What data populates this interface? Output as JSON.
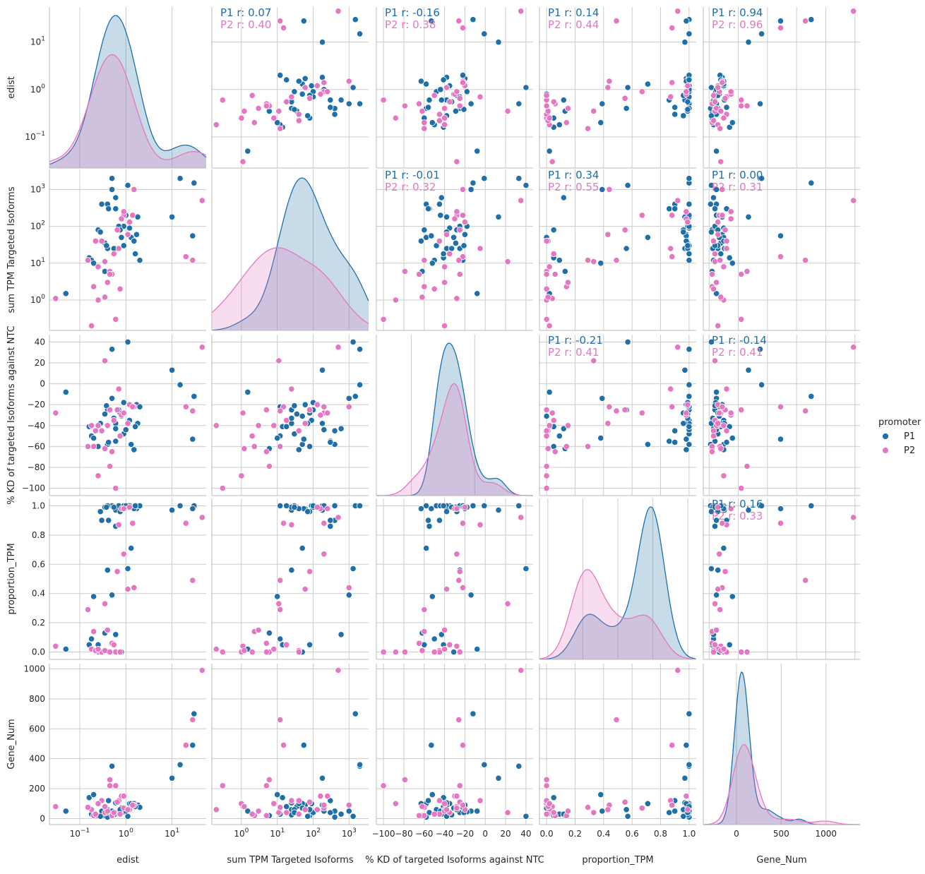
{
  "chart_data": {
    "type": "scatter",
    "kind": "pairplot",
    "variables": [
      {
        "name": "edist",
        "scale": "log",
        "range": [
          0.022,
          55
        ],
        "ticks": [
          {
            "v": 0.1,
            "b": "10",
            "e": "−1"
          },
          {
            "v": 1,
            "b": "10",
            "e": "0"
          },
          {
            "v": 10,
            "b": "10",
            "e": "1"
          }
        ]
      },
      {
        "name": "sum TPM Targeted Isoforms",
        "scale": "log",
        "range": [
          0.15,
          3500
        ],
        "ticks": [
          {
            "v": 1,
            "b": "10",
            "e": "0"
          },
          {
            "v": 10,
            "b": "10",
            "e": "1"
          },
          {
            "v": 100,
            "b": "10",
            "e": "2"
          },
          {
            "v": 1000,
            "b": "10",
            "e": "3"
          }
        ]
      },
      {
        "name": "% KD of targeted Isoforms against NTC",
        "scale": "linear",
        "range": [
          -107,
          47
        ],
        "ticks": [
          {
            "v": -100,
            "t": "−100"
          },
          {
            "v": -80,
            "t": "−80"
          },
          {
            "v": -60,
            "t": "−60"
          },
          {
            "v": -40,
            "t": "−40"
          },
          {
            "v": -20,
            "t": "−20"
          },
          {
            "v": 0,
            "t": "0"
          },
          {
            "v": 20,
            "t": "20"
          },
          {
            "v": 40,
            "t": "40"
          }
        ]
      },
      {
        "name": "proportion_TPM",
        "scale": "linear",
        "range": [
          -0.05,
          1.05
        ],
        "ticks": [
          {
            "v": 0,
            "t": "0.0"
          },
          {
            "v": 0.2,
            "t": "0.2"
          },
          {
            "v": 0.4,
            "t": "0.4"
          },
          {
            "v": 0.6,
            "t": "0.6"
          },
          {
            "v": 0.8,
            "t": "0.8"
          },
          {
            "v": 1.0,
            "t": "1.0"
          }
        ]
      },
      {
        "name": "Gene_Num",
        "scale": "linear",
        "range": [
          -40,
          1035
        ],
        "ticks": [
          {
            "v": 0,
            "t": "0"
          },
          {
            "v": 200,
            "t": "200"
          },
          {
            "v": 400,
            "t": "400"
          },
          {
            "v": 600,
            "t": "600"
          },
          {
            "v": 800,
            "t": "800"
          },
          {
            "v": 1000,
            "t": "1000"
          }
        ]
      }
    ],
    "diag_x_ranges": [
      [
        0.022,
        55
      ],
      [
        0.15,
        3500
      ],
      [
        -155,
        92
      ],
      [
        -0.62,
        1.62
      ],
      [
        -370,
        1380
      ]
    ],
    "diag_x_ticks": [
      null,
      null,
      [
        {
          "v": -100,
          "t": "−100"
        },
        {
          "v": 0,
          "t": "0"
        }
      ],
      [
        {
          "v": -0.5,
          "t": "−0.5"
        },
        {
          "v": 0,
          "t": "0.0"
        },
        {
          "v": 0.5,
          "t": "0.5"
        },
        {
          "v": 1.0,
          "t": "1.0"
        },
        {
          "v": 1.5,
          "t": "1.5"
        }
      ],
      [
        {
          "v": 0,
          "t": "0"
        },
        {
          "v": 500,
          "t": "500"
        },
        {
          "v": 1000,
          "t": "1000"
        }
      ]
    ],
    "series": [
      {
        "name": "P1",
        "color": "#1f6fa8",
        "points": [
          [
            1.1,
            1300,
            40,
            0.57,
            15
          ],
          [
            0.05,
            1.5,
            -8,
            0.02,
            50
          ],
          [
            0.5,
            2000,
            33,
            1.0,
            350
          ],
          [
            30,
            1500,
            -12,
            1.0,
            700
          ],
          [
            0.3,
            400,
            -45,
            0.9,
            50
          ],
          [
            0.6,
            300,
            -55,
            0.86,
            40
          ],
          [
            1.7,
            60,
            -20,
            0.98,
            90
          ],
          [
            1.2,
            90,
            -35,
            1.0,
            100
          ],
          [
            0.4,
            25,
            -25,
            0.56,
            60
          ],
          [
            0.25,
            80,
            -60,
            0.05,
            20
          ],
          [
            0.16,
            14,
            -41,
            0.05,
            140
          ],
          [
            1.8,
            180,
            -38,
            1.0,
            90
          ],
          [
            0.6,
            25,
            -38,
            0.97,
            105
          ],
          [
            0.35,
            35,
            -29,
            0.99,
            80
          ],
          [
            1.3,
            50,
            -58,
            0.71,
            100
          ],
          [
            0.5,
            1000,
            -14,
            0.39,
            50
          ],
          [
            0.9,
            100,
            -18,
            0.99,
            45
          ],
          [
            0.18,
            12,
            -50,
            0.09,
            30
          ],
          [
            0.35,
            6,
            -62,
            0.13,
            20
          ],
          [
            10,
            180,
            13,
            0.97,
            270
          ],
          [
            15,
            2000,
            -1,
            1.0,
            360
          ],
          [
            28,
            55,
            -53,
            0.98,
            490
          ],
          [
            0.4,
            400,
            -58,
            1.0,
            10
          ],
          [
            0.7,
            100,
            -25,
            1.0,
            40
          ],
          [
            0.2,
            10,
            -52,
            0.38,
            160
          ],
          [
            1.5,
            40,
            -63,
            0.98,
            100
          ],
          [
            0.9,
            30,
            -48,
            1.0,
            60
          ],
          [
            0.6,
            600,
            -43,
            0.12,
            30
          ],
          [
            0.42,
            300,
            -56,
            0.9,
            120
          ],
          [
            0.8,
            50,
            -31,
            0.0,
            70
          ],
          [
            2.0,
            12,
            -22,
            1.0,
            75
          ],
          [
            0.75,
            80,
            -28,
            0.96,
            60
          ],
          [
            1.0,
            200,
            -44,
            1.0,
            50
          ],
          [
            0.55,
            25,
            -33,
            0.99,
            25
          ],
          [
            0.28,
            70,
            -38,
            0.96,
            15
          ],
          [
            0.38,
            30,
            -21,
            0.99,
            40
          ],
          [
            1.6,
            18,
            -41,
            1.0,
            80
          ]
        ]
      },
      {
        "name": "P2",
        "color": "#e377c2",
        "points": [
          [
            0.03,
            1.1,
            -28,
            0.04,
            80
          ],
          [
            0.2,
            2.3,
            -60,
            0.14,
            20
          ],
          [
            0.45,
            6,
            -79,
            0.0,
            260
          ],
          [
            0.25,
            1.0,
            -88,
            0.0,
            100
          ],
          [
            0.18,
            0.2,
            -40,
            0.02,
            60
          ],
          [
            0.6,
            0.3,
            -100,
            0.0,
            220
          ],
          [
            0.35,
            11,
            22,
            0.33,
            40
          ],
          [
            0.7,
            25,
            -5,
            0.87,
            120
          ],
          [
            0.9,
            200,
            -28,
            0.67,
            70
          ],
          [
            1.5,
            1000,
            -22,
            0.44,
            90
          ],
          [
            0.4,
            3,
            -40,
            0.15,
            50
          ],
          [
            0.15,
            12,
            -60,
            0.29,
            75
          ],
          [
            0.22,
            40,
            -45,
            0.01,
            30
          ],
          [
            0.5,
            5,
            -65,
            0.06,
            20
          ],
          [
            0.8,
            160,
            -30,
            0.98,
            150
          ],
          [
            20,
            15,
            -22,
            0.88,
            490
          ],
          [
            28,
            12,
            -26,
            0.49,
            660
          ],
          [
            45,
            500,
            35,
            0.92,
            990
          ],
          [
            0.3,
            40,
            -45,
            0.0,
            120
          ],
          [
            0.55,
            18,
            -35,
            0.05,
            40
          ],
          [
            1.2,
            130,
            -20,
            0.99,
            60
          ],
          [
            0.65,
            80,
            -25,
            0.55,
            110
          ],
          [
            0.35,
            1.2,
            -62,
            0.01,
            80
          ],
          [
            0.9,
            250,
            -28,
            0.98,
            150
          ],
          [
            1.1,
            60,
            -38,
            0.43,
            60
          ],
          [
            0.25,
            8,
            -40,
            0.02,
            100
          ],
          [
            0.45,
            5,
            -25,
            0.0,
            220
          ],
          [
            0.75,
            2,
            -50,
            0.0,
            30
          ],
          [
            1.4,
            200,
            -22,
            0.88,
            90
          ]
        ]
      }
    ],
    "correlations": [
      {
        "row": 0,
        "col": 1,
        "P1": "P1 r: 0.07",
        "P2": "P2 r: 0.40"
      },
      {
        "row": 0,
        "col": 2,
        "P1": "P1 r: -0.16",
        "P2": "P2 r: 0.38"
      },
      {
        "row": 0,
        "col": 3,
        "P1": "P1 r: 0.14",
        "P2": "P2 r: 0.44"
      },
      {
        "row": 0,
        "col": 4,
        "P1": "P1 r: 0.94",
        "P2": "P2 r: 0.96"
      },
      {
        "row": 1,
        "col": 2,
        "P1": "P1 r: -0.01",
        "P2": "P2 r: 0.32"
      },
      {
        "row": 1,
        "col": 3,
        "P1": "P1 r: 0.34",
        "P2": "P2 r: 0.55"
      },
      {
        "row": 1,
        "col": 4,
        "P1": "P1 r: 0.00",
        "P2": "P2 r: 0.31"
      },
      {
        "row": 2,
        "col": 3,
        "P1": "P1 r: -0.21",
        "P2": "P2 r: 0.41"
      },
      {
        "row": 2,
        "col": 4,
        "P1": "P1 r: -0.14",
        "P2": "P2 r: 0.41"
      },
      {
        "row": 3,
        "col": 4,
        "P1": "P1 r: 0.16",
        "P2": "P2 r: 0.33"
      }
    ],
    "legend": {
      "title": "promoter",
      "entries": [
        "P1",
        "P2"
      ],
      "placement": "right"
    },
    "grid": true
  }
}
